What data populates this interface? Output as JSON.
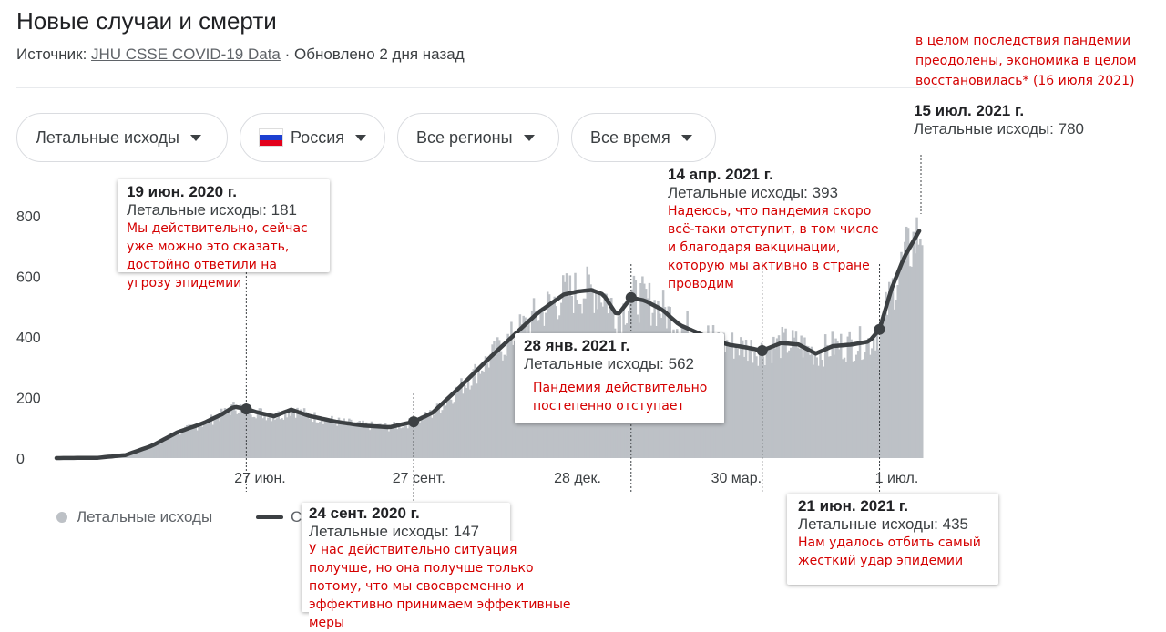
{
  "header": {
    "title": "Новые случаи и смерти",
    "source_label": "Источник:",
    "source_link": "JHU CSSE COVID-19 Data",
    "updated": "· Обновлено 2 дня назад"
  },
  "filters": [
    {
      "label": "Летальные исходы"
    },
    {
      "label": "Россия",
      "flag_colors": [
        "#ffffff",
        "#1c3fd1",
        "#e3001b"
      ]
    },
    {
      "label": "Все регионы"
    },
    {
      "label": "Все время"
    }
  ],
  "chart_data": {
    "type": "bar",
    "title": "",
    "xlabel": "",
    "ylabel": "",
    "ylim": [
      0,
      900
    ],
    "y_ticks": [
      "0",
      "200",
      "400",
      "600",
      "800"
    ],
    "x_ticks": [
      "27 июн.",
      "27 сент.",
      "28 дек.",
      "30 мар.",
      "1 июл."
    ],
    "series": [
      {
        "name": "Летальные исходы",
        "kind": "daily_bars",
        "color": "#bdc1c6"
      },
      {
        "name": "",
        "kind": "moving_average_line",
        "color": "#3c4043"
      }
    ],
    "timeline_start": "2020-03-01",
    "timeline_end": "2021-07-15",
    "moving_average": [
      [
        "2020-03-01",
        0
      ],
      [
        "2020-03-25",
        1
      ],
      [
        "2020-04-10",
        10
      ],
      [
        "2020-04-25",
        40
      ],
      [
        "2020-05-10",
        85
      ],
      [
        "2020-05-25",
        115
      ],
      [
        "2020-06-05",
        145
      ],
      [
        "2020-06-12",
        170
      ],
      [
        "2020-06-19",
        162
      ],
      [
        "2020-06-26",
        150
      ],
      [
        "2020-07-05",
        138
      ],
      [
        "2020-07-15",
        160
      ],
      [
        "2020-07-25",
        140
      ],
      [
        "2020-08-10",
        120
      ],
      [
        "2020-08-25",
        108
      ],
      [
        "2020-09-10",
        102
      ],
      [
        "2020-09-24",
        120
      ],
      [
        "2020-10-05",
        150
      ],
      [
        "2020-10-20",
        230
      ],
      [
        "2020-11-05",
        320
      ],
      [
        "2020-11-20",
        400
      ],
      [
        "2020-12-05",
        480
      ],
      [
        "2020-12-20",
        540
      ],
      [
        "2020-12-28",
        550
      ],
      [
        "2021-01-05",
        555
      ],
      [
        "2021-01-12",
        540
      ],
      [
        "2021-01-20",
        470
      ],
      [
        "2021-01-28",
        530
      ],
      [
        "2021-02-05",
        520
      ],
      [
        "2021-02-15",
        490
      ],
      [
        "2021-02-25",
        440
      ],
      [
        "2021-03-05",
        420
      ],
      [
        "2021-03-15",
        395
      ],
      [
        "2021-03-25",
        375
      ],
      [
        "2021-04-05",
        365
      ],
      [
        "2021-04-14",
        355
      ],
      [
        "2021-04-25",
        380
      ],
      [
        "2021-05-05",
        375
      ],
      [
        "2021-05-15",
        345
      ],
      [
        "2021-05-25",
        370
      ],
      [
        "2021-06-05",
        375
      ],
      [
        "2021-06-15",
        385
      ],
      [
        "2021-06-21",
        425
      ],
      [
        "2021-06-28",
        560
      ],
      [
        "2021-07-05",
        660
      ],
      [
        "2021-07-15",
        760
      ]
    ],
    "annotations": [
      {
        "date": "19 июн. 2020 г.",
        "value_text": "Летальные исходы: 181",
        "note": "Мы действительно, сейчас уже можно это сказать, достойно ответили на угрозу эпидемии"
      },
      {
        "date": "24 сент. 2020 г.",
        "value_text": "Летальные исходы: 147",
        "note": "У нас действительно ситуация получше, но она получше только потому, что мы своевременно и эффективно принимаем эффективные меры"
      },
      {
        "date": "28 янв. 2021 г.",
        "value_text": "Летальные исходы: 562",
        "note": "Пандемия действительно постепенно отступает"
      },
      {
        "date": "14 апр. 2021 г.",
        "value_text": "Летальные исходы: 393",
        "note": "Надеюсь, что пандемия скоро всё-таки отступит, в том числе и благодаря вакцинации, которую мы активно в стране проводим"
      },
      {
        "date": "21 июн. 2021 г.",
        "value_text": "Летальные исходы: 435",
        "note": "Нам удалось отбить самый жесткий удар эпидемии"
      },
      {
        "date": "15 июл. 2021 г.",
        "value_text": "Летальные исходы: 780",
        "note": "в целом последствия пандемии преодолены, экономика в целом восстановилась* (16 июля 2021)"
      }
    ]
  },
  "legend": {
    "bars_label": "Летальные исходы",
    "line_label": "С"
  }
}
